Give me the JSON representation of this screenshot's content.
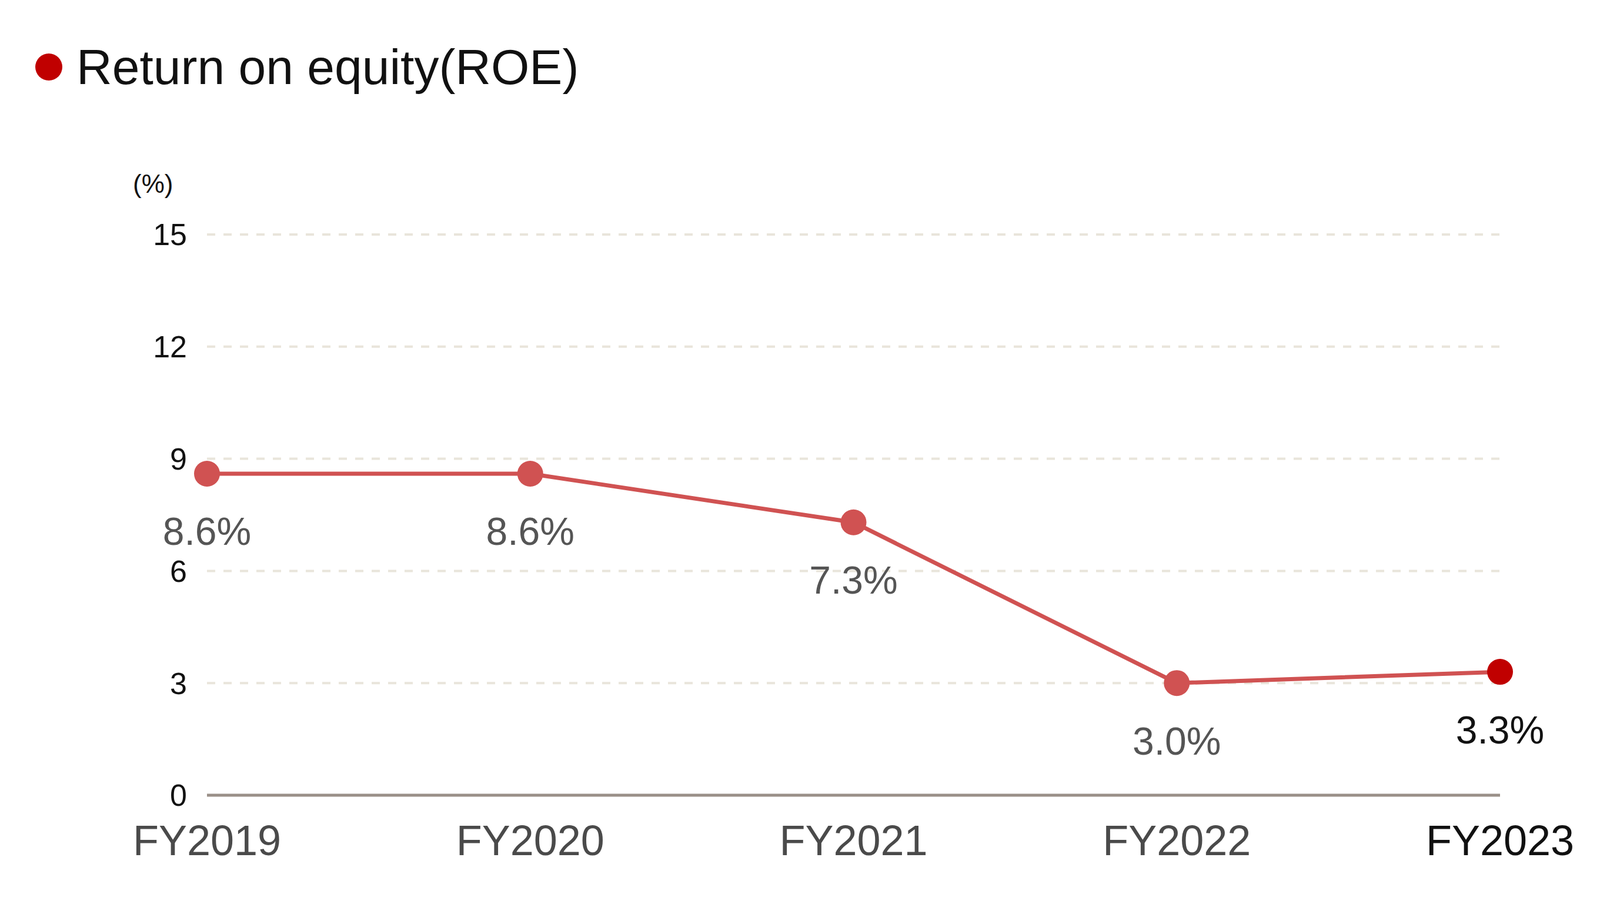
{
  "chart_data": {
    "type": "line",
    "title": "Return on equity(ROE)",
    "ylabel": "(%)",
    "categories": [
      "FY2019",
      "FY2020",
      "FY2021",
      "FY2022",
      "FY2023"
    ],
    "values": [
      8.6,
      8.6,
      7.3,
      3.0,
      3.3
    ],
    "value_labels": [
      "8.6%",
      "8.6%",
      "7.3%",
      "3.0%",
      "3.3%"
    ],
    "color": "#d05252",
    "colors": [
      "#d05252",
      "#d05252",
      "#d05252",
      "#d05252",
      "#c00000"
    ],
    "ylim": [
      0,
      15
    ],
    "yticks": [
      0,
      3,
      6,
      9,
      12,
      15
    ],
    "grid": true,
    "data_labels": true,
    "marker": "circle"
  }
}
